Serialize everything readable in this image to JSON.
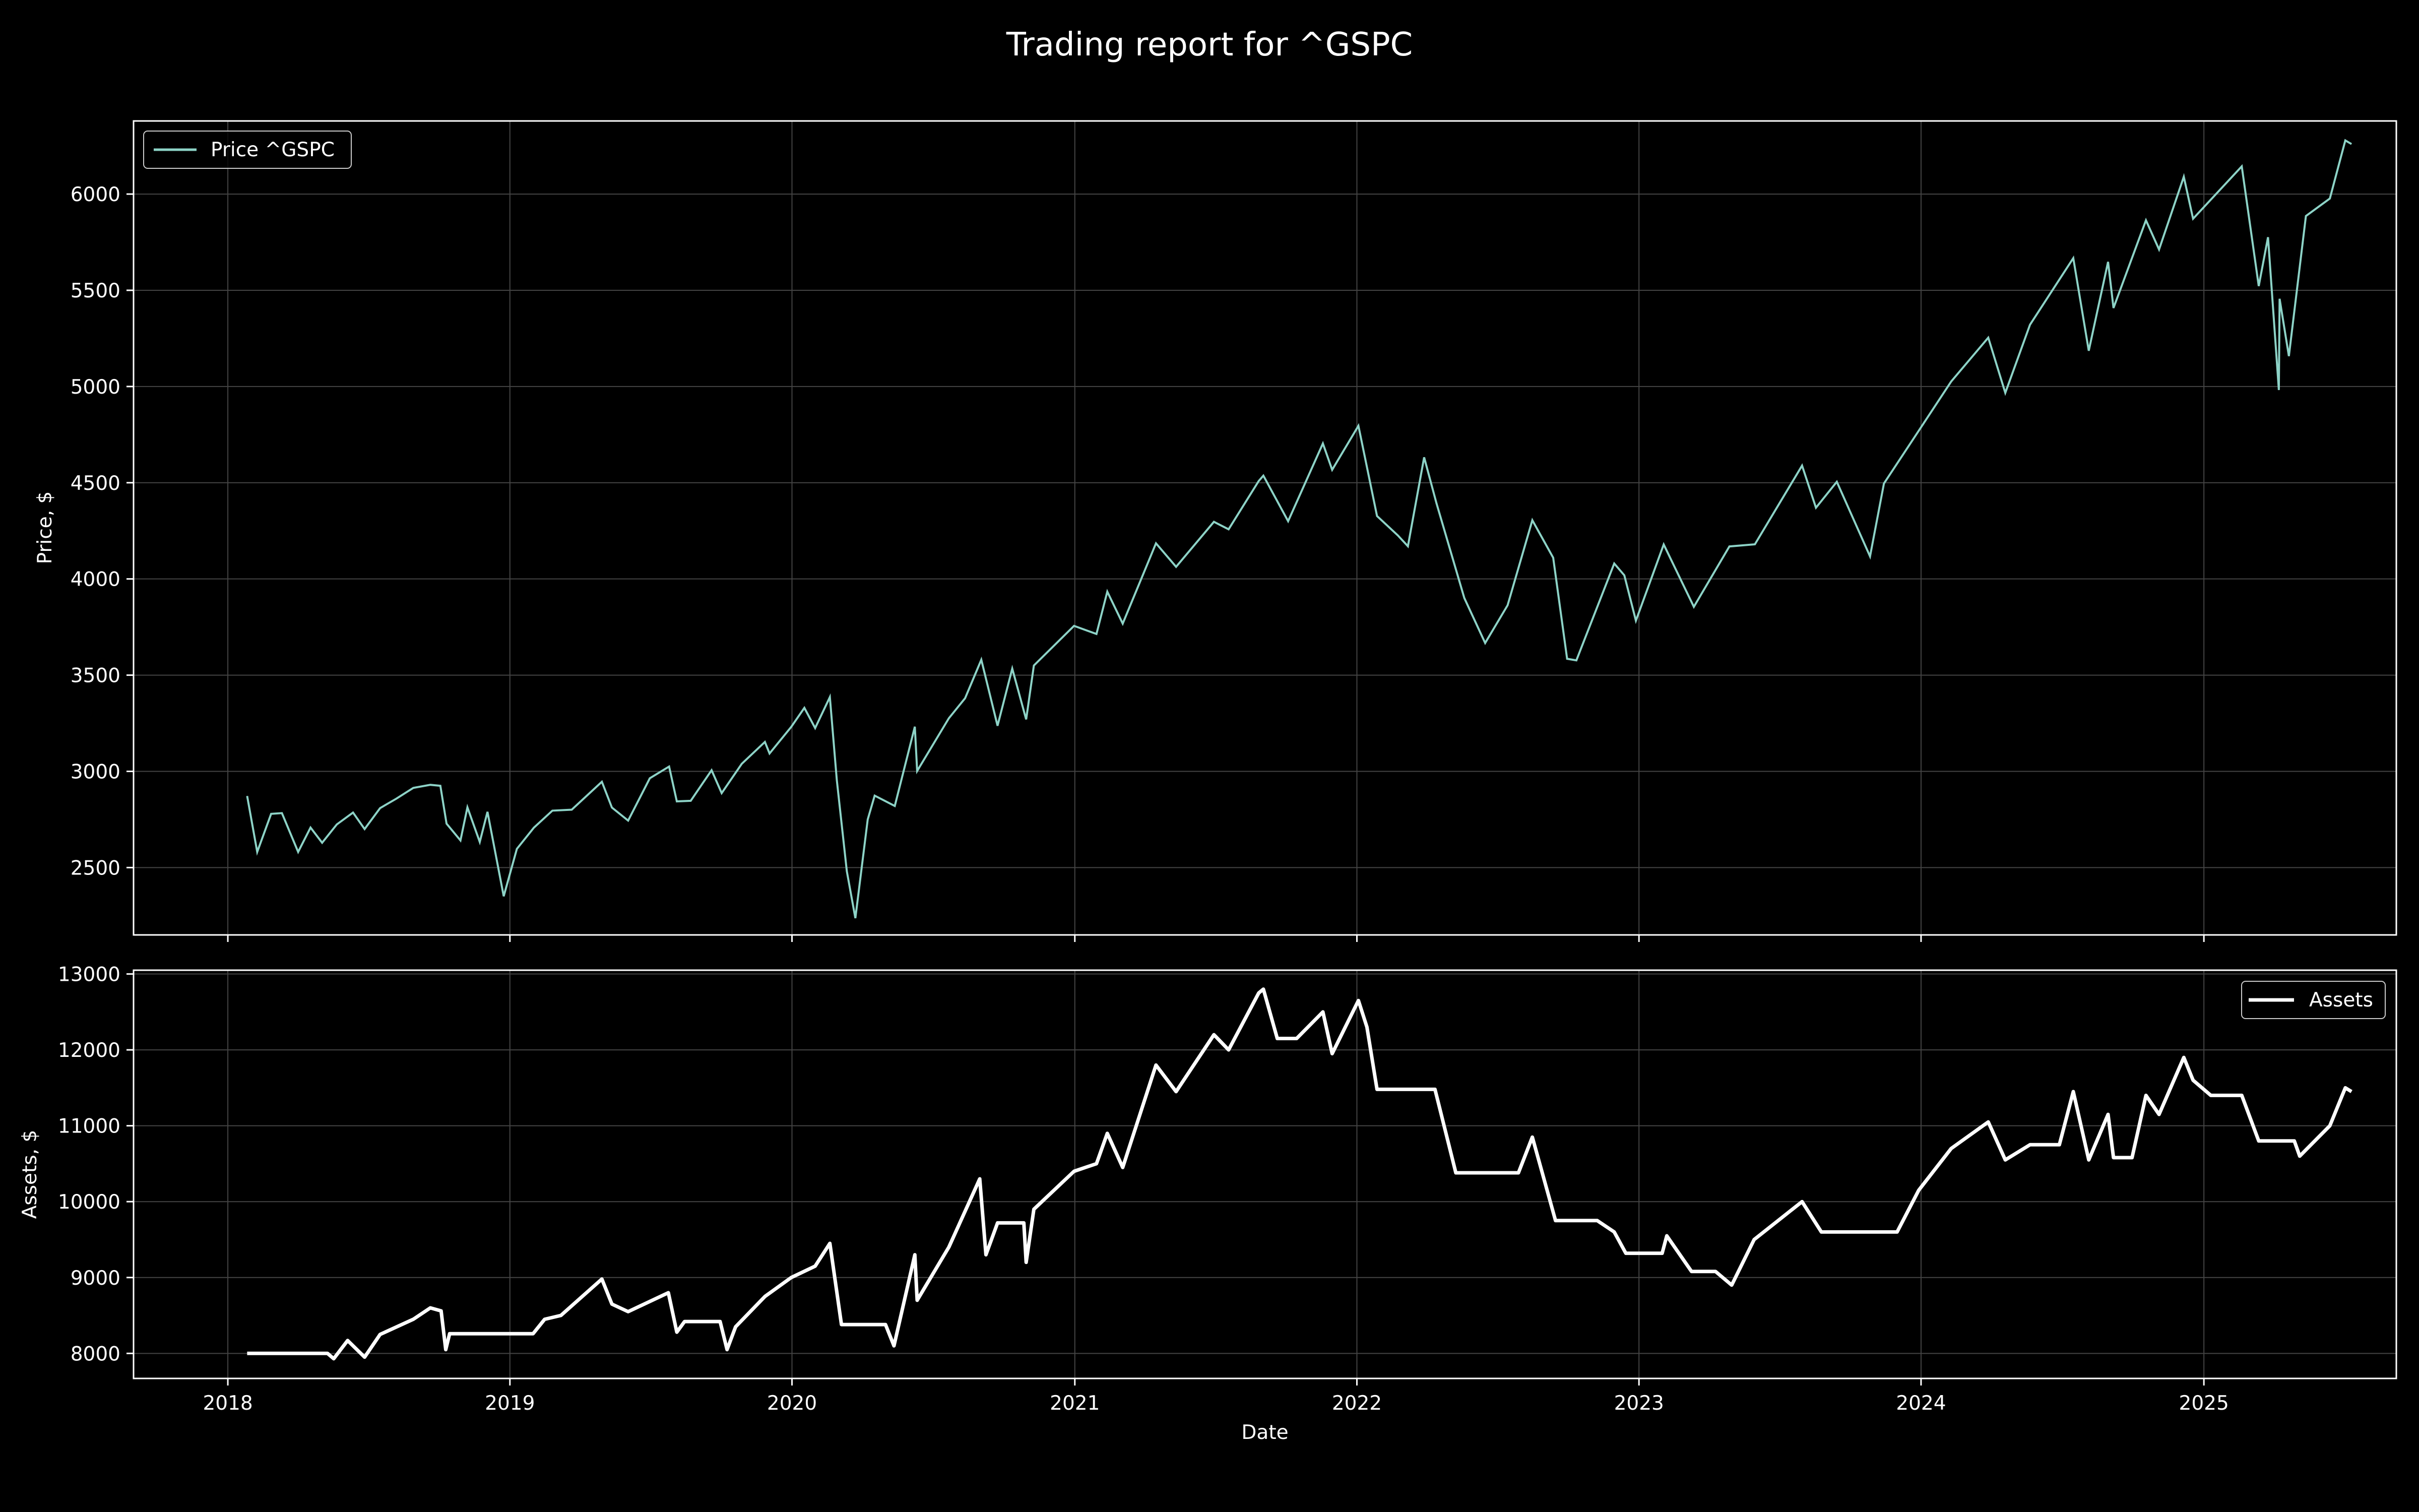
{
  "figure": {
    "title": "Trading report for ^GSPC",
    "background": "#000000",
    "foreground": "#ffffff",
    "grid_color": "#444444"
  },
  "chart_data": [
    {
      "type": "line",
      "title": "",
      "xlabel": "",
      "ylabel": "Price, $",
      "xlim": [
        "2017-09-01",
        "2025-09-07"
      ],
      "ylim": [
        2150,
        6380
      ],
      "yticks": [
        2500,
        3000,
        3500,
        4000,
        4500,
        5000,
        5500,
        6000
      ],
      "xticks": [
        "2018-01-01",
        "2019-01-01",
        "2020-01-01",
        "2021-01-01",
        "2022-01-01",
        "2023-01-01",
        "2024-01-01",
        "2025-01-01"
      ],
      "xtick_labels_visible": false,
      "grid": true,
      "legend_position": "upper-left",
      "series": [
        {
          "name": "Price ^GSPC",
          "color": "#8dd3c7",
          "points": [
            [
              "2018-01-26",
              2872
            ],
            [
              "2018-02-08",
              2581
            ],
            [
              "2018-02-26",
              2779
            ],
            [
              "2018-03-12",
              2783
            ],
            [
              "2018-04-02",
              2581
            ],
            [
              "2018-04-18",
              2708
            ],
            [
              "2018-05-03",
              2629
            ],
            [
              "2018-05-22",
              2724
            ],
            [
              "2018-06-12",
              2786
            ],
            [
              "2018-06-27",
              2700
            ],
            [
              "2018-07-17",
              2809
            ],
            [
              "2018-08-07",
              2858
            ],
            [
              "2018-08-29",
              2914
            ],
            [
              "2018-09-20",
              2930
            ],
            [
              "2018-10-03",
              2925
            ],
            [
              "2018-10-11",
              2728
            ],
            [
              "2018-10-29",
              2641
            ],
            [
              "2018-11-07",
              2813
            ],
            [
              "2018-11-23",
              2633
            ],
            [
              "2018-12-03",
              2790
            ],
            [
              "2018-12-24",
              2351
            ],
            [
              "2019-01-10",
              2597
            ],
            [
              "2019-02-01",
              2707
            ],
            [
              "2019-02-25",
              2796
            ],
            [
              "2019-03-22",
              2801
            ],
            [
              "2019-04-30",
              2946
            ],
            [
              "2019-05-13",
              2812
            ],
            [
              "2019-06-03",
              2744
            ],
            [
              "2019-07-01",
              2964
            ],
            [
              "2019-07-26",
              3025
            ],
            [
              "2019-08-05",
              2844
            ],
            [
              "2019-08-23",
              2847
            ],
            [
              "2019-09-19",
              3006
            ],
            [
              "2019-10-02",
              2887
            ],
            [
              "2019-10-28",
              3039
            ],
            [
              "2019-11-27",
              3153
            ],
            [
              "2019-12-03",
              3093
            ],
            [
              "2019-12-31",
              3231
            ],
            [
              "2020-01-17",
              3330
            ],
            [
              "2020-01-31",
              3225
            ],
            [
              "2020-02-19",
              3386
            ],
            [
              "2020-02-28",
              2954
            ],
            [
              "2020-03-12",
              2480
            ],
            [
              "2020-03-23",
              2237
            ],
            [
              "2020-04-08",
              2750
            ],
            [
              "2020-04-17",
              2874
            ],
            [
              "2020-05-13",
              2820
            ],
            [
              "2020-06-08",
              3232
            ],
            [
              "2020-06-11",
              3002
            ],
            [
              "2020-07-22",
              3276
            ],
            [
              "2020-08-12",
              3380
            ],
            [
              "2020-09-02",
              3580
            ],
            [
              "2020-09-23",
              3237
            ],
            [
              "2020-10-12",
              3534
            ],
            [
              "2020-10-30",
              3270
            ],
            [
              "2020-11-09",
              3550
            ],
            [
              "2020-12-31",
              3756
            ],
            [
              "2021-01-29",
              3714
            ],
            [
              "2021-02-12",
              3934
            ],
            [
              "2021-03-04",
              3768
            ],
            [
              "2021-04-16",
              4185
            ],
            [
              "2021-05-12",
              4063
            ],
            [
              "2021-06-30",
              4297
            ],
            [
              "2021-07-19",
              4258
            ],
            [
              "2021-08-27",
              4509
            ],
            [
              "2021-09-02",
              4537
            ],
            [
              "2021-10-04",
              4300
            ],
            [
              "2021-11-18",
              4704
            ],
            [
              "2021-11-30",
              4567
            ],
            [
              "2022-01-03",
              4796
            ],
            [
              "2022-01-27",
              4327
            ],
            [
              "2022-02-23",
              4226
            ],
            [
              "2022-03-08",
              4170
            ],
            [
              "2022-03-29",
              4632
            ],
            [
              "2022-04-14",
              4393
            ],
            [
              "2022-05-20",
              3901
            ],
            [
              "2022-06-16",
              3667
            ],
            [
              "2022-07-15",
              3863
            ],
            [
              "2022-08-16",
              4305
            ],
            [
              "2022-09-12",
              4110
            ],
            [
              "2022-09-30",
              3585
            ],
            [
              "2022-10-12",
              3577
            ],
            [
              "2022-11-30",
              4080
            ],
            [
              "2022-12-13",
              4019
            ],
            [
              "2022-12-28",
              3783
            ],
            [
              "2023-02-02",
              4179
            ],
            [
              "2023-03-13",
              3855
            ],
            [
              "2023-04-28",
              4169
            ],
            [
              "2023-05-31",
              4180
            ],
            [
              "2023-07-31",
              4589
            ],
            [
              "2023-08-18",
              4370
            ],
            [
              "2023-09-14",
              4505
            ],
            [
              "2023-10-27",
              4117
            ],
            [
              "2023-11-14",
              4496
            ],
            [
              "2023-12-29",
              4770
            ],
            [
              "2024-02-09",
              5026
            ],
            [
              "2024-03-28",
              5254
            ],
            [
              "2024-04-19",
              4967
            ],
            [
              "2024-05-21",
              5321
            ],
            [
              "2024-07-16",
              5667
            ],
            [
              "2024-08-05",
              5186
            ],
            [
              "2024-08-30",
              5648
            ],
            [
              "2024-09-06",
              5408
            ],
            [
              "2024-10-18",
              5864
            ],
            [
              "2024-11-04",
              5712
            ],
            [
              "2024-12-06",
              6090
            ],
            [
              "2024-12-18",
              5872
            ],
            [
              "2025-02-19",
              6144
            ],
            [
              "2025-03-13",
              5522
            ],
            [
              "2025-03-25",
              5776
            ],
            [
              "2025-04-08",
              4982
            ],
            [
              "2025-04-09",
              5456
            ],
            [
              "2025-04-21",
              5158
            ],
            [
              "2025-05-13",
              5886
            ],
            [
              "2025-06-13",
              5977
            ],
            [
              "2025-07-03",
              6279
            ],
            [
              "2025-07-11",
              6260
            ]
          ]
        }
      ]
    },
    {
      "type": "line",
      "title": "",
      "xlabel": "Date",
      "ylabel": "Assets, $",
      "xlim": [
        "2017-09-01",
        "2025-09-07"
      ],
      "ylim": [
        7670,
        13050
      ],
      "yticks": [
        8000,
        9000,
        10000,
        11000,
        12000,
        13000
      ],
      "xticks": [
        "2018-01-01",
        "2019-01-01",
        "2020-01-01",
        "2021-01-01",
        "2022-01-01",
        "2023-01-01",
        "2024-01-01",
        "2025-01-01"
      ],
      "xtick_labels": [
        "2018",
        "2019",
        "2020",
        "2021",
        "2022",
        "2023",
        "2024",
        "2025"
      ],
      "grid": true,
      "legend_position": "upper-right",
      "series": [
        {
          "name": "Assets",
          "color": "#ffffff",
          "points": [
            [
              "2018-01-26",
              8000
            ],
            [
              "2018-05-10",
              8000
            ],
            [
              "2018-05-18",
              7930
            ],
            [
              "2018-06-05",
              8170
            ],
            [
              "2018-06-27",
              7950
            ],
            [
              "2018-07-17",
              8250
            ],
            [
              "2018-08-29",
              8450
            ],
            [
              "2018-09-20",
              8600
            ],
            [
              "2018-10-04",
              8560
            ],
            [
              "2018-10-10",
              8050
            ],
            [
              "2018-10-15",
              8260
            ],
            [
              "2019-01-31",
              8260
            ],
            [
              "2019-02-15",
              8450
            ],
            [
              "2019-03-08",
              8500
            ],
            [
              "2019-04-30",
              8980
            ],
            [
              "2019-05-13",
              8650
            ],
            [
              "2019-06-03",
              8550
            ],
            [
              "2019-07-25",
              8800
            ],
            [
              "2019-08-05",
              8280
            ],
            [
              "2019-08-15",
              8420
            ],
            [
              "2019-09-30",
              8420
            ],
            [
              "2019-10-09",
              8050
            ],
            [
              "2019-10-20",
              8350
            ],
            [
              "2019-11-27",
              8750
            ],
            [
              "2019-12-31",
              9000
            ],
            [
              "2020-01-31",
              9150
            ],
            [
              "2020-02-19",
              9450
            ],
            [
              "2020-03-05",
              8380
            ],
            [
              "2020-05-01",
              8380
            ],
            [
              "2020-05-12",
              8100
            ],
            [
              "2020-06-08",
              9300
            ],
            [
              "2020-06-11",
              8700
            ],
            [
              "2020-07-22",
              9400
            ],
            [
              "2020-08-31",
              10300
            ],
            [
              "2020-09-08",
              9300
            ],
            [
              "2020-09-23",
              9720
            ],
            [
              "2020-10-27",
              9720
            ],
            [
              "2020-10-30",
              9200
            ],
            [
              "2020-11-09",
              9900
            ],
            [
              "2020-12-31",
              10400
            ],
            [
              "2021-01-29",
              10500
            ],
            [
              "2021-02-12",
              10900
            ],
            [
              "2021-03-04",
              10450
            ],
            [
              "2021-04-16",
              11800
            ],
            [
              "2021-05-12",
              11450
            ],
            [
              "2021-06-30",
              12200
            ],
            [
              "2021-07-19",
              12000
            ],
            [
              "2021-08-27",
              12750
            ],
            [
              "2021-09-02",
              12800
            ],
            [
              "2021-09-20",
              12150
            ],
            [
              "2021-10-15",
              12150
            ],
            [
              "2021-11-18",
              12500
            ],
            [
              "2021-11-30",
              11950
            ],
            [
              "2022-01-03",
              12650
            ],
            [
              "2022-01-14",
              12300
            ],
            [
              "2022-01-27",
              11480
            ],
            [
              "2022-04-12",
              11480
            ],
            [
              "2022-05-09",
              10380
            ],
            [
              "2022-07-29",
              10380
            ],
            [
              "2022-08-16",
              10850
            ],
            [
              "2022-09-15",
              9750
            ],
            [
              "2022-11-08",
              9750
            ],
            [
              "2022-11-30",
              9600
            ],
            [
              "2022-12-15",
              9320
            ],
            [
              "2023-01-31",
              9320
            ],
            [
              "2023-02-06",
              9550
            ],
            [
              "2023-03-10",
              9080
            ],
            [
              "2023-04-10",
              9080
            ],
            [
              "2023-05-01",
              8900
            ],
            [
              "2023-05-30",
              9500
            ],
            [
              "2023-07-31",
              10000
            ],
            [
              "2023-08-25",
              9600
            ],
            [
              "2023-12-01",
              9600
            ],
            [
              "2023-12-29",
              10150
            ],
            [
              "2024-02-09",
              10700
            ],
            [
              "2024-03-28",
              11050
            ],
            [
              "2024-04-19",
              10550
            ],
            [
              "2024-05-21",
              10750
            ],
            [
              "2024-06-28",
              10750
            ],
            [
              "2024-07-16",
              11450
            ],
            [
              "2024-08-05",
              10550
            ],
            [
              "2024-08-30",
              11150
            ],
            [
              "2024-09-06",
              10580
            ],
            [
              "2024-09-30",
              10580
            ],
            [
              "2024-10-18",
              11400
            ],
            [
              "2024-11-04",
              11150
            ],
            [
              "2024-12-06",
              11900
            ],
            [
              "2024-12-18",
              11600
            ],
            [
              "2025-01-10",
              11400
            ],
            [
              "2025-02-19",
              11400
            ],
            [
              "2025-03-13",
              10800
            ],
            [
              "2025-04-28",
              10800
            ],
            [
              "2025-05-05",
              10600
            ],
            [
              "2025-06-13",
              11000
            ],
            [
              "2025-07-03",
              11500
            ],
            [
              "2025-07-11",
              11450
            ]
          ]
        }
      ]
    }
  ]
}
